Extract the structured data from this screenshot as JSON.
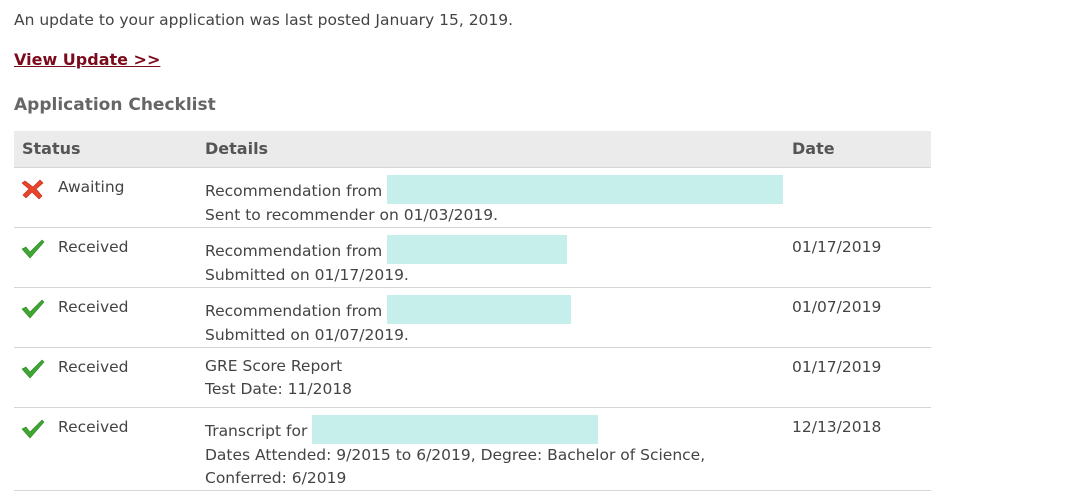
{
  "notice": {
    "text": "An update to your application was last posted January 15, 2019."
  },
  "view_update": {
    "label": "View Update >>"
  },
  "checklist": {
    "title": "Application Checklist",
    "columns": {
      "status": "Status",
      "details": "Details",
      "date": "Date"
    },
    "rows": [
      {
        "status": "Awaiting",
        "status_icon": "x-mark-icon",
        "status_color": "#e8432b",
        "detail_line1": "Recommendation from",
        "detail_line2": "Sent to recommender on 01/03/2019.",
        "detail_line3": "",
        "date": ""
      },
      {
        "status": "Received",
        "status_icon": "checkmark-icon",
        "status_color": "#3fa535",
        "detail_line1": "Recommendation from",
        "detail_line2": "Submitted on 01/17/2019.",
        "detail_line3": "",
        "date": "01/17/2019"
      },
      {
        "status": "Received",
        "status_icon": "checkmark-icon",
        "status_color": "#3fa535",
        "detail_line1": "Recommendation from",
        "detail_line2": "Submitted on 01/07/2019.",
        "detail_line3": "",
        "date": "01/07/2019"
      },
      {
        "status": "Received",
        "status_icon": "checkmark-icon",
        "status_color": "#3fa535",
        "detail_line1": "GRE Score Report",
        "detail_line2": "Test Date: 11/2018",
        "detail_line3": "",
        "date": "01/17/2019"
      },
      {
        "status": "Received",
        "status_icon": "checkmark-icon",
        "status_color": "#3fa535",
        "detail_line1": "Transcript for",
        "detail_line2": "Dates Attended: 9/2015 to 6/2019, Degree: Bachelor of Science,",
        "detail_line3": "Conferred: 6/2019",
        "date": "12/13/2018"
      }
    ]
  }
}
